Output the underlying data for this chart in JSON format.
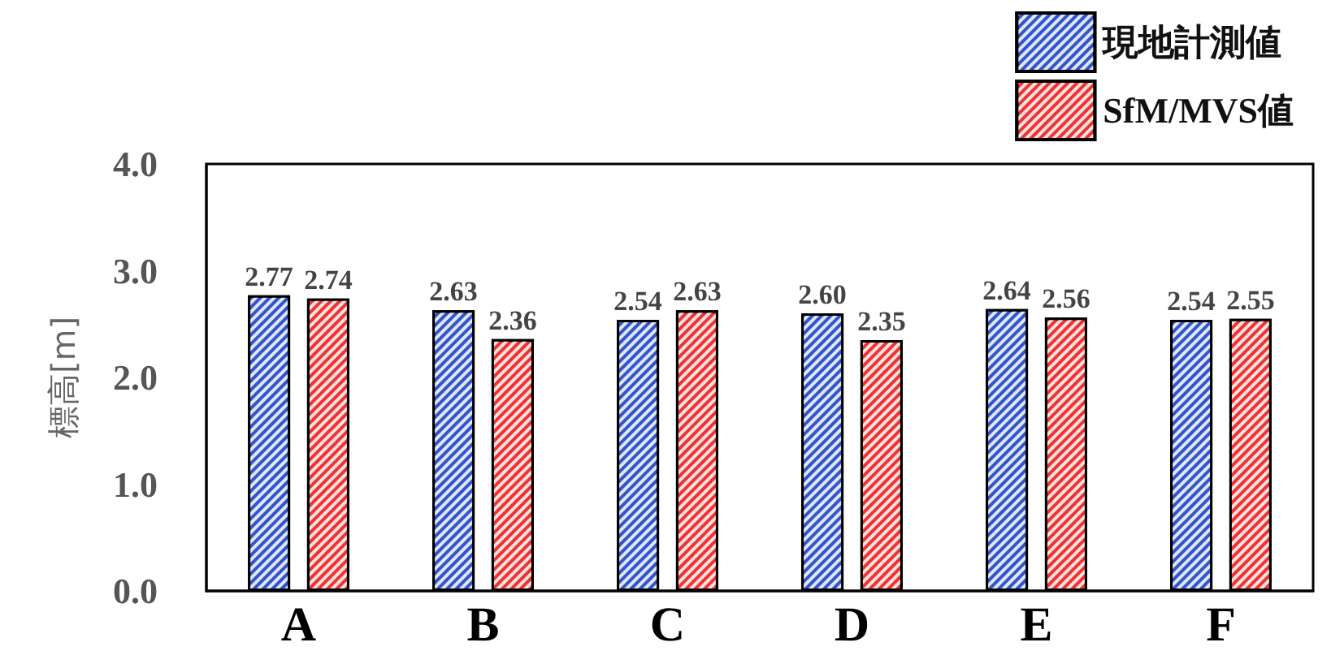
{
  "chart_data": {
    "type": "bar",
    "ylabel": "標高[m]",
    "categories": [
      "A",
      "B",
      "C",
      "D",
      "E",
      "F"
    ],
    "series": [
      {
        "name": "現地計測値",
        "color": "#3355cc",
        "values": [
          2.77,
          2.63,
          2.54,
          2.6,
          2.64,
          2.54
        ],
        "value_labels": [
          "2.77",
          "2.63",
          "2.54",
          "2.60",
          "2.64",
          "2.54"
        ]
      },
      {
        "name": "SfM/MVS値",
        "color": "#ee3333",
        "values": [
          2.74,
          2.36,
          2.63,
          2.35,
          2.56,
          2.55
        ],
        "value_labels": [
          "2.74",
          "2.36",
          "2.63",
          "2.35",
          "2.56",
          "2.55"
        ]
      }
    ],
    "ylim": [
      0,
      4
    ],
    "yticks": [
      {
        "value": 0,
        "label": "0.0"
      },
      {
        "value": 1,
        "label": "1.0"
      },
      {
        "value": 2,
        "label": "2.0"
      },
      {
        "value": 3,
        "label": "3.0"
      },
      {
        "value": 4,
        "label": "4.0"
      }
    ],
    "grid": false,
    "legend": "top right"
  }
}
